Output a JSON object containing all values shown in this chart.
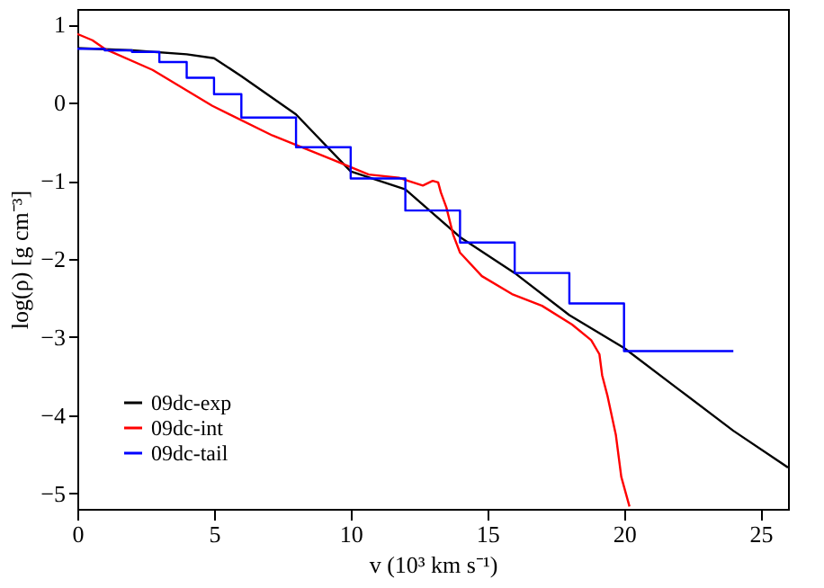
{
  "chart_data": {
    "type": "line",
    "xlabel": "v (10³ km s⁻¹)",
    "ylabel": "log(ρ) [g cm⁻³]",
    "xlim": [
      0,
      26
    ],
    "ylim": [
      -5.2,
      1.2
    ],
    "xticks": [
      0,
      5,
      10,
      15,
      20,
      25
    ],
    "yticks": [
      -5,
      -4,
      -3,
      -2,
      -1,
      0,
      1
    ],
    "grid": false,
    "legend": "bottom left",
    "marker": "none",
    "line_style": "solid",
    "series": [
      {
        "name": "09dc-exp",
        "color": "#000000",
        "x": [
          0,
          2,
          4,
          5,
          6,
          8,
          10,
          12,
          14,
          16,
          18,
          20,
          22,
          24,
          26
        ],
        "values": [
          0.7,
          0.67,
          0.62,
          0.57,
          0.34,
          -0.15,
          -0.88,
          -1.11,
          -1.72,
          -2.18,
          -2.72,
          -3.14,
          -3.67,
          -4.2,
          -4.67
        ]
      },
      {
        "name": "09dc-int",
        "color": "#ff0000",
        "x": [
          0,
          0.55,
          1,
          2.75,
          4.94,
          7.14,
          9.34,
          10.66,
          11.76,
          12.1,
          12.64,
          13.0,
          13.2,
          13.3,
          13.5,
          13.75,
          14.0,
          14.8,
          15.9,
          17.0,
          18.1,
          18.8,
          19.1,
          19.2,
          19.4,
          19.7,
          19.9,
          20.2
        ],
        "values": [
          0.88,
          0.8,
          0.69,
          0.42,
          -0.04,
          -0.42,
          -0.73,
          -0.92,
          -0.96,
          -1.0,
          -1.06,
          -1.0,
          -1.02,
          -1.15,
          -1.34,
          -1.69,
          -1.92,
          -2.22,
          -2.45,
          -2.6,
          -2.84,
          -3.04,
          -3.22,
          -3.49,
          -3.76,
          -4.25,
          -4.79,
          -5.17
        ]
      },
      {
        "name": "09dc-tail",
        "color": "#0000ff",
        "type": "step",
        "x": [
          0,
          1,
          2,
          3,
          4,
          5,
          6,
          8,
          10,
          12,
          14,
          16,
          18,
          20,
          24
        ],
        "values": [
          0.69,
          0.67,
          0.65,
          0.52,
          0.32,
          0.11,
          -0.19,
          -0.57,
          -0.97,
          -1.38,
          -1.79,
          -2.18,
          -2.57,
          -3.18,
          -3.18
        ]
      }
    ]
  }
}
